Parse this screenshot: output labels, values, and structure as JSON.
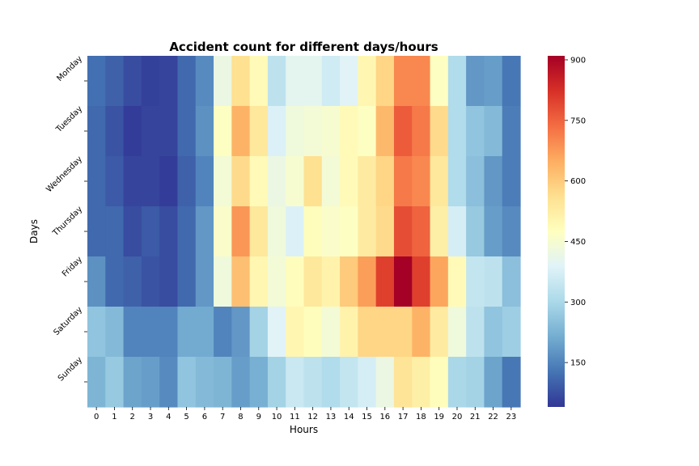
{
  "chart_data": {
    "type": "heatmap",
    "title": "Accident count for different days/hours",
    "xlabel": "Hours",
    "ylabel": "Days",
    "x": [
      "0",
      "1",
      "2",
      "3",
      "4",
      "5",
      "6",
      "7",
      "8",
      "9",
      "10",
      "11",
      "12",
      "13",
      "14",
      "15",
      "16",
      "17",
      "18",
      "19",
      "20",
      "21",
      "22",
      "23"
    ],
    "y": [
      "Monday",
      "Tuesday",
      "Wednesday",
      "Thursday",
      "Friday",
      "Saturday",
      "Sunday"
    ],
    "values": [
      [
        120,
        100,
        70,
        55,
        60,
        110,
        160,
        420,
        560,
        490,
        330,
        400,
        400,
        360,
        390,
        500,
        580,
        700,
        700,
        470,
        310,
        180,
        190,
        130
      ],
      [
        110,
        80,
        50,
        60,
        60,
        110,
        170,
        470,
        640,
        540,
        380,
        430,
        440,
        450,
        490,
        470,
        630,
        760,
        720,
        570,
        310,
        260,
        240,
        140
      ],
      [
        110,
        90,
        60,
        60,
        50,
        100,
        150,
        440,
        570,
        490,
        420,
        450,
        560,
        440,
        490,
        530,
        580,
        720,
        700,
        540,
        310,
        250,
        180,
        140
      ],
      [
        110,
        110,
        70,
        90,
        70,
        110,
        180,
        460,
        680,
        540,
        430,
        380,
        480,
        460,
        470,
        530,
        570,
        780,
        750,
        520,
        370,
        270,
        190,
        160
      ],
      [
        170,
        110,
        100,
        80,
        70,
        110,
        180,
        430,
        620,
        500,
        440,
        480,
        540,
        510,
        600,
        670,
        800,
        910,
        800,
        660,
        490,
        340,
        330,
        250
      ],
      [
        260,
        240,
        150,
        150,
        150,
        210,
        210,
        150,
        180,
        290,
        390,
        500,
        480,
        440,
        510,
        580,
        580,
        580,
        640,
        530,
        430,
        330,
        260,
        280
      ],
      [
        230,
        270,
        200,
        190,
        160,
        260,
        240,
        230,
        190,
        220,
        290,
        350,
        330,
        310,
        340,
        370,
        420,
        550,
        520,
        480,
        300,
        290,
        200,
        130
      ]
    ],
    "colorbar": {
      "colormap": "RdYlBu_r",
      "vmin": 40,
      "vmax": 910,
      "ticks": [
        "150",
        "300",
        "450",
        "600",
        "750",
        "900"
      ]
    },
    "grid": false,
    "legend": "colorbar-right"
  }
}
